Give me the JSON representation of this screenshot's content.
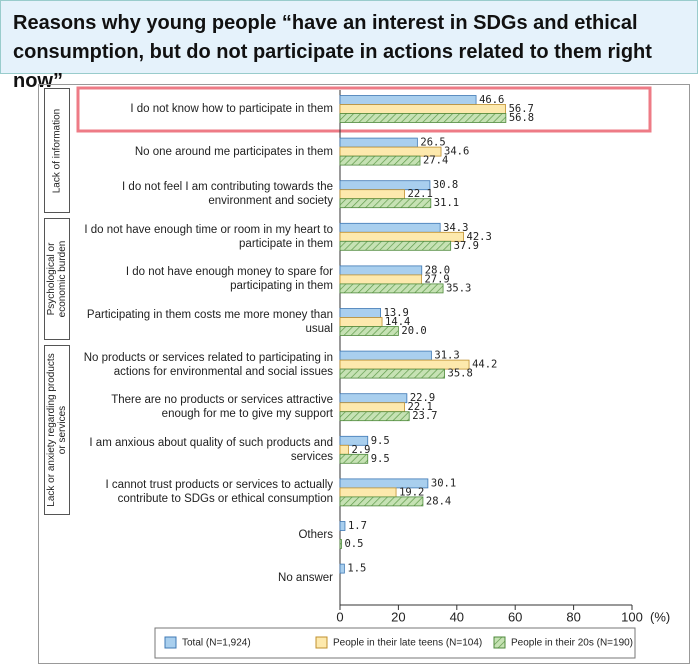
{
  "chart_data": {
    "type": "bar",
    "title": "Reasons why young people “have an interest in SDGs and ethical consumption, but do not participate in actions related to them right now”",
    "groups": [
      "Lack of information",
      "Psychological or economic burden",
      "Lack or anxiety regarding products or services"
    ],
    "categories": [
      "I do not know how to participate in them",
      "No one around me participates in them",
      "I do not feel I am contributing towards the\nenvironment and society",
      "I do not have enough time or room in my heart to\nparticipate in them",
      "I do not have enough money to spare for\nparticipating in them",
      "Participating in them costs me more money than\nusual",
      "No products or services related to participating in\nactions for environmental and social issues",
      "There are no products or services attractive\nenough for me to give my support",
      "I am anxious about quality of such products and\nservices",
      "I cannot trust products or services to actually\ncontribute to SDGs or ethical consumption",
      "Others",
      "No answer"
    ],
    "series": [
      {
        "name": "Total (N=1,924)",
        "color": "#a9cfee",
        "values": [
          46.6,
          26.5,
          30.8,
          34.3,
          28.0,
          13.9,
          31.3,
          22.9,
          9.5,
          30.1,
          1.7,
          1.5
        ],
        "value_labels": [
          "46.6",
          "26.5",
          "30.8",
          "34.3",
          "28.0",
          "13.9",
          "31.3",
          "22.9",
          "9.5",
          "30.1",
          "1.7",
          "1.5"
        ]
      },
      {
        "name": "People in their late teens (N=104)",
        "color": "#fde9ad",
        "values": [
          56.7,
          34.6,
          22.1,
          42.3,
          27.9,
          14.4,
          44.2,
          22.1,
          2.9,
          19.2,
          null,
          null
        ],
        "value_labels": [
          "56.7",
          "34.6",
          "22.1",
          "42.3",
          "27.9",
          "14.4",
          "44.2",
          "22.1",
          "2.9",
          "19.2",
          null,
          null
        ]
      },
      {
        "name": "People in their 20s (N=190)",
        "color": "#c6e2b4",
        "values": [
          56.8,
          27.4,
          31.1,
          37.9,
          35.3,
          20.0,
          35.8,
          23.7,
          9.5,
          28.4,
          0.5,
          null
        ],
        "value_labels": [
          "56.8",
          "27.4",
          "31.1",
          "37.9",
          "35.3",
          "20.0",
          "35.8",
          "23.7",
          "9.5",
          "28.4",
          "0.5",
          null
        ]
      }
    ],
    "xlim": [
      0,
      100
    ],
    "xticks": [
      0,
      20,
      40,
      60,
      80,
      100
    ],
    "x_unit": "(%)",
    "legend": "bottom"
  }
}
